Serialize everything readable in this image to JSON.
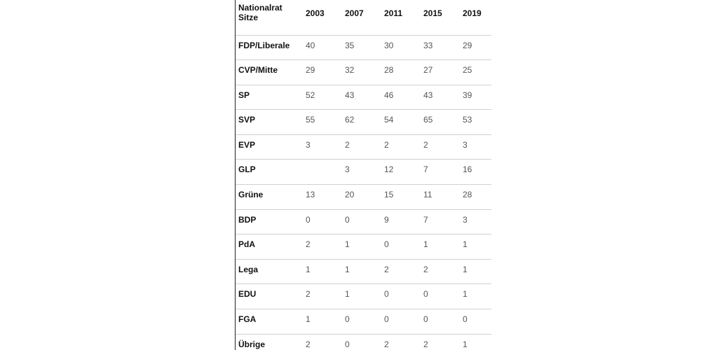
{
  "table": {
    "header": {
      "line1": "Nationalrat",
      "line2": "Sitze",
      "years": [
        "2003",
        "2007",
        "2011",
        "2015",
        "2019"
      ]
    },
    "rows": [
      {
        "party": "FDP/Liberale",
        "values": [
          "40",
          "35",
          "30",
          "33",
          "29"
        ]
      },
      {
        "party": "CVP/Mitte",
        "values": [
          "29",
          "32",
          "28",
          "27",
          "25"
        ]
      },
      {
        "party": "SP",
        "values": [
          "52",
          "43",
          "46",
          "43",
          "39"
        ]
      },
      {
        "party": "SVP",
        "values": [
          "55",
          "62",
          "54",
          "65",
          "53"
        ]
      },
      {
        "party": "EVP",
        "values": [
          "3",
          "2",
          "2",
          "2",
          "3"
        ]
      },
      {
        "party": "GLP",
        "values": [
          "",
          "3",
          "12",
          "7",
          "16"
        ]
      },
      {
        "party": "Grüne",
        "values": [
          "13",
          "20",
          "15",
          "11",
          "28"
        ]
      },
      {
        "party": "BDP",
        "values": [
          "0",
          "0",
          "9",
          "7",
          "3"
        ]
      },
      {
        "party": "PdA",
        "values": [
          "2",
          "1",
          "0",
          "1",
          "1"
        ]
      },
      {
        "party": "Lega",
        "values": [
          "1",
          "1",
          "2",
          "2",
          "1"
        ]
      },
      {
        "party": "EDU",
        "values": [
          "2",
          "1",
          "0",
          "0",
          "1"
        ]
      },
      {
        "party": "FGA",
        "values": [
          "1",
          "0",
          "0",
          "0",
          "0"
        ]
      },
      {
        "party": "Übrige",
        "values": [
          "2",
          "0",
          "2",
          "2",
          "1"
        ]
      }
    ]
  }
}
